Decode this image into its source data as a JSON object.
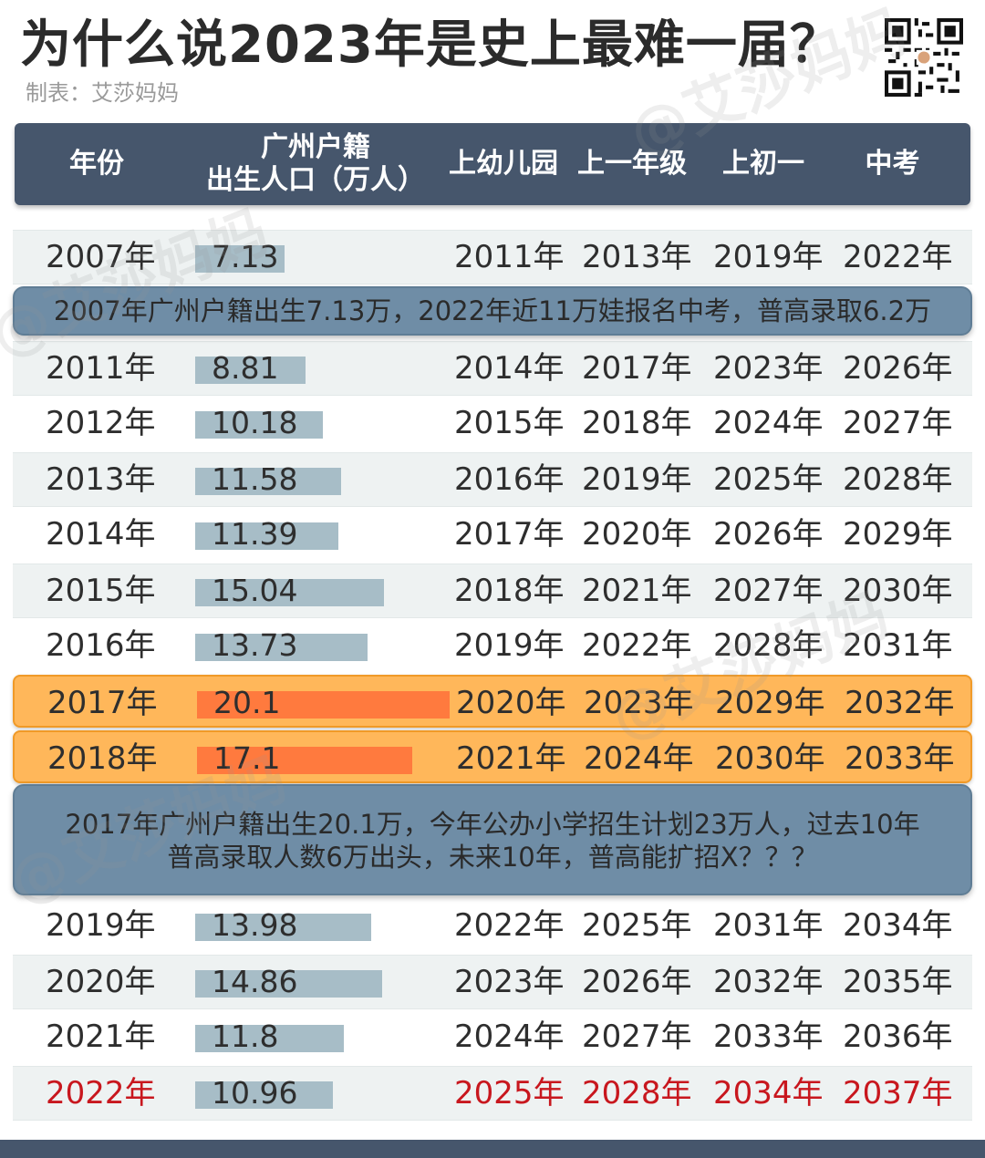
{
  "title": "为什么说2023年是史上最难一届？",
  "credit": "制表：艾莎妈妈",
  "watermark": "@艾莎妈妈",
  "header": {
    "year": "年份",
    "births_line1": "广州户籍",
    "births_line2": "出生人口（万人）",
    "kindergarten": "上幼儿园",
    "grade1": "上一年级",
    "junior1": "上初一",
    "zhongkao": "中考"
  },
  "colors": {
    "header_bg": "#46566c",
    "bar_normal": "#a7bdc7",
    "bar_highlight": "#ff7a3e",
    "row_highlight": "#ffb75a",
    "note_bg": "#6f8da6",
    "red_text": "#c8171e"
  },
  "rows": [
    {
      "year": "2007年",
      "births_label": "7.13",
      "kindergarten": "2011年",
      "grade1": "2013年",
      "junior1": "2019年",
      "zhongkao": "2022年"
    },
    {
      "year": "2011年",
      "births_label": "8.81",
      "kindergarten": "2014年",
      "grade1": "2017年",
      "junior1": "2023年",
      "zhongkao": "2026年"
    },
    {
      "year": "2012年",
      "births_label": "10.18",
      "kindergarten": "2015年",
      "grade1": "2018年",
      "junior1": "2024年",
      "zhongkao": "2027年"
    },
    {
      "year": "2013年",
      "births_label": "11.58",
      "kindergarten": "2016年",
      "grade1": "2019年",
      "junior1": "2025年",
      "zhongkao": "2028年"
    },
    {
      "year": "2014年",
      "births_label": "11.39",
      "kindergarten": "2017年",
      "grade1": "2020年",
      "junior1": "2026年",
      "zhongkao": "2029年"
    },
    {
      "year": "2015年",
      "births_label": "15.04",
      "kindergarten": "2018年",
      "grade1": "2021年",
      "junior1": "2027年",
      "zhongkao": "2030年"
    },
    {
      "year": "2016年",
      "births_label": "13.73",
      "kindergarten": "2019年",
      "grade1": "2022年",
      "junior1": "2028年",
      "zhongkao": "2031年"
    },
    {
      "year": "2017年",
      "births_label": "20.1",
      "kindergarten": "2020年",
      "grade1": "2023年",
      "junior1": "2029年",
      "zhongkao": "2032年"
    },
    {
      "year": "2018年",
      "births_label": "17.1",
      "kindergarten": "2021年",
      "grade1": "2024年",
      "junior1": "2030年",
      "zhongkao": "2033年"
    },
    {
      "year": "2019年",
      "births_label": "13.98",
      "kindergarten": "2022年",
      "grade1": "2025年",
      "junior1": "2031年",
      "zhongkao": "2034年"
    },
    {
      "year": "2020年",
      "births_label": "14.86",
      "kindergarten": "2023年",
      "grade1": "2026年",
      "junior1": "2032年",
      "zhongkao": "2035年"
    },
    {
      "year": "2021年",
      "births_label": "11.8",
      "kindergarten": "2024年",
      "grade1": "2027年",
      "junior1": "2033年",
      "zhongkao": "2036年"
    },
    {
      "year": "2022年",
      "births_label": "10.96",
      "kindergarten": "2025年",
      "grade1": "2028年",
      "junior1": "2034年",
      "zhongkao": "2037年"
    }
  ],
  "notes": {
    "note1": "2007年广州户籍出生7.13万，2022年近11万娃报名中考，普高录取6.2万",
    "note2_line1": "2017年广州户籍出生20.1万，今年公办小学招生计划23万人，过去10年",
    "note2_line2": "普高录取人数6万出头，未来10年，普高能扩招X？？？"
  },
  "chart_data": {
    "type": "table",
    "title": "为什么说2023年是史上最难一届？",
    "columns": [
      "年份",
      "广州户籍出生人口（万人）",
      "上幼儿园",
      "上一年级",
      "上初一",
      "中考"
    ],
    "categories": [
      "2007年",
      "2011年",
      "2012年",
      "2013年",
      "2014年",
      "2015年",
      "2016年",
      "2017年",
      "2018年",
      "2019年",
      "2020年",
      "2021年",
      "2022年"
    ],
    "series": [
      {
        "values": [
          7.13,
          8.81,
          10.18,
          11.58,
          11.39,
          15.04,
          13.73,
          20.1,
          17.1,
          13.98,
          14.86,
          11.8,
          10.96
        ]
      }
    ],
    "highlighted_rows": [
      "2017年",
      "2018年"
    ],
    "red_rows": [
      "2022年"
    ]
  }
}
